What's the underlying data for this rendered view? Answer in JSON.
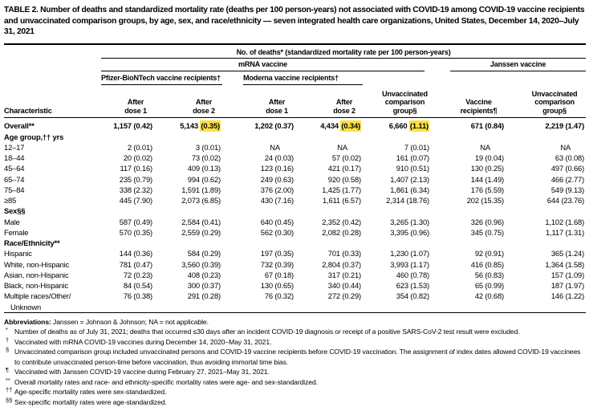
{
  "title": "TABLE 2. Number of deaths and standardized mortality rate (deaths per 100 person-years) not associated with COVID-19 among COVID-19 vaccine recipients and unvaccinated comparison groups, by age, sex, and race/ethnicity — seven integrated health care organizations, United States, December 14, 2020–July 31, 2021",
  "colors": {
    "highlight": "#fbe049"
  },
  "header": {
    "characteristic": "Characteristic",
    "deaths_span": "No. of deaths* (standardized mortality rate per 100 person-years)",
    "mrna_span": "mRNA vaccine",
    "janssen_span": "Janssen vaccine",
    "pfizer_span": "Pfizer-BioNTech vaccine recipients†",
    "moderna_span": "Moderna vaccine recipients†",
    "after_dose1": "After dose 1",
    "after_dose2": "After dose 2",
    "unvacc_group": "Unvaccinated comparison group§",
    "vaccine_recipients": "Vaccine recipients¶"
  },
  "table": {
    "rows": [
      {
        "label": "Overall**",
        "bold": true,
        "hl": [
          1,
          3,
          4
        ],
        "cells": [
          [
            "1,157",
            "0.42"
          ],
          [
            "5,143",
            "0.35"
          ],
          [
            "1,202",
            "0.37"
          ],
          [
            "4,434",
            "0.34"
          ],
          [
            "6,660",
            "1.11"
          ],
          [
            "671",
            "0.84"
          ],
          [
            "2,219",
            "1.47"
          ]
        ]
      },
      {
        "section": "Age group,†† yrs"
      },
      {
        "label": "12–17",
        "cells": [
          [
            "2",
            "0.01"
          ],
          [
            "3",
            "0.01"
          ],
          "NA",
          "NA",
          [
            "7",
            "0.01"
          ],
          "NA",
          "NA"
        ]
      },
      {
        "label": "18–44",
        "cells": [
          [
            "20",
            "0.02"
          ],
          [
            "73",
            "0.02"
          ],
          [
            "24",
            "0.03"
          ],
          [
            "57",
            "0.02"
          ],
          [
            "161",
            "0.07"
          ],
          [
            "19",
            "0.04"
          ],
          [
            "63",
            "0.08"
          ]
        ]
      },
      {
        "label": "45–64",
        "cells": [
          [
            "117",
            "0.16"
          ],
          [
            "409",
            "0.13"
          ],
          [
            "123",
            "0.16"
          ],
          [
            "421",
            "0.17"
          ],
          [
            "910",
            "0.51"
          ],
          [
            "130",
            "0.25"
          ],
          [
            "497",
            "0.66"
          ]
        ]
      },
      {
        "label": "65–74",
        "cells": [
          [
            "235",
            "0.79"
          ],
          [
            "994",
            "0.62"
          ],
          [
            "249",
            "0.63"
          ],
          [
            "920",
            "0.58"
          ],
          [
            "1,407",
            "2.13"
          ],
          [
            "144",
            "1.49"
          ],
          [
            "466",
            "2.77"
          ]
        ]
      },
      {
        "label": "75–84",
        "cells": [
          [
            "338",
            "2.32"
          ],
          [
            "1,591",
            "1.89"
          ],
          [
            "376",
            "2.00"
          ],
          [
            "1,425",
            "1.77"
          ],
          [
            "1,861",
            "6.34"
          ],
          [
            "176",
            "5.59"
          ],
          [
            "549",
            "9.13"
          ]
        ]
      },
      {
        "label": "≥85",
        "cells": [
          [
            "445",
            "7.90"
          ],
          [
            "2,073",
            "6.85"
          ],
          [
            "430",
            "7.16"
          ],
          [
            "1,611",
            "6.57"
          ],
          [
            "2,314",
            "18.76"
          ],
          [
            "202",
            "15.35"
          ],
          [
            "644",
            "23.76"
          ]
        ]
      },
      {
        "section": "Sex§§"
      },
      {
        "label": "Male",
        "cells": [
          [
            "587",
            "0.49"
          ],
          [
            "2,584",
            "0.41"
          ],
          [
            "640",
            "0.45"
          ],
          [
            "2,352",
            "0.42"
          ],
          [
            "3,265",
            "1.30"
          ],
          [
            "326",
            "0.96"
          ],
          [
            "1,102",
            "1.68"
          ]
        ]
      },
      {
        "label": "Female",
        "cells": [
          [
            "570",
            "0.35"
          ],
          [
            "2,559",
            "0.29"
          ],
          [
            "562",
            "0.30"
          ],
          [
            "2,082",
            "0.28"
          ],
          [
            "3,395",
            "0.96"
          ],
          [
            "345",
            "0.75"
          ],
          [
            "1,117",
            "1.31"
          ]
        ]
      },
      {
        "section": "Race/Ethnicity**"
      },
      {
        "label": "Hispanic",
        "cells": [
          [
            "144",
            "0.36"
          ],
          [
            "584",
            "0.29"
          ],
          [
            "197",
            "0.35"
          ],
          [
            "701",
            "0.33"
          ],
          [
            "1,230",
            "1.07"
          ],
          [
            "92",
            "0.91"
          ],
          [
            "365",
            "1.24"
          ]
        ]
      },
      {
        "label": "White, non-Hispanic",
        "cells": [
          [
            "781",
            "0.47"
          ],
          [
            "3,560",
            "0.39"
          ],
          [
            "732",
            "0.39"
          ],
          [
            "2,804",
            "0.37"
          ],
          [
            "3,993",
            "1.17"
          ],
          [
            "416",
            "0.85"
          ],
          [
            "1,364",
            "1.58"
          ]
        ]
      },
      {
        "label": "Asian, non-Hispanic",
        "cells": [
          [
            "72",
            "0.23"
          ],
          [
            "408",
            "0.23"
          ],
          [
            "67",
            "0.18"
          ],
          [
            "317",
            "0.21"
          ],
          [
            "460",
            "0.78"
          ],
          [
            "56",
            "0.83"
          ],
          [
            "157",
            "1.09"
          ]
        ]
      },
      {
        "label": "Black, non-Hispanic",
        "cells": [
          [
            "84",
            "0.54"
          ],
          [
            "300",
            "0.37"
          ],
          [
            "130",
            "0.65"
          ],
          [
            "340",
            "0.44"
          ],
          [
            "623",
            "1.53"
          ],
          [
            "65",
            "0.99"
          ],
          [
            "187",
            "1.97"
          ]
        ]
      },
      {
        "label": "Multiple races/Other/ Unknown",
        "wrap": true,
        "cells": [
          [
            "76",
            "0.38"
          ],
          [
            "291",
            "0.28"
          ],
          [
            "76",
            "0.32"
          ],
          [
            "272",
            "0.29"
          ],
          [
            "354",
            "0.82"
          ],
          [
            "42",
            "0.68"
          ],
          [
            "146",
            "1.22"
          ]
        ]
      }
    ]
  },
  "footnotes": {
    "abbreviations_label": "Abbreviations:",
    "abbreviations_text": " Janssen = Johnson & Johnson; NA = not applicable.",
    "items": [
      {
        "marker": "*",
        "text": "Number of deaths as of July 31, 2021; deaths that occurred ≤30 days after an incident COVID-19 diagnosis or receipt of a positive SARS-CoV-2 test result were excluded."
      },
      {
        "marker": "†",
        "text": "Vaccinated with mRNA COVID-19 vaccines during December 14, 2020–May 31, 2021."
      },
      {
        "marker": "§",
        "text": "Unvaccinated comparison group included unvaccinated persons and COVID-19 vaccine recipients before COVID-19 vaccination. The assignment of index dates allowed COVID-19 vaccinees to contribute unvaccinated person-time before vaccination, thus avoiding immortal time bias."
      },
      {
        "marker": "¶",
        "text": "Vaccinated with Janssen COVID-19 vaccine during February 27, 2021–May 31, 2021."
      },
      {
        "marker": "**",
        "text": "Overall mortality rates and race- and ethnicity-specific mortality rates were age- and sex-standardized."
      },
      {
        "marker": "††",
        "text": "Age-specific mortality rates were sex-standardized."
      },
      {
        "marker": "§§",
        "text": "Sex-specific mortality rates were age-standardized."
      }
    ]
  }
}
